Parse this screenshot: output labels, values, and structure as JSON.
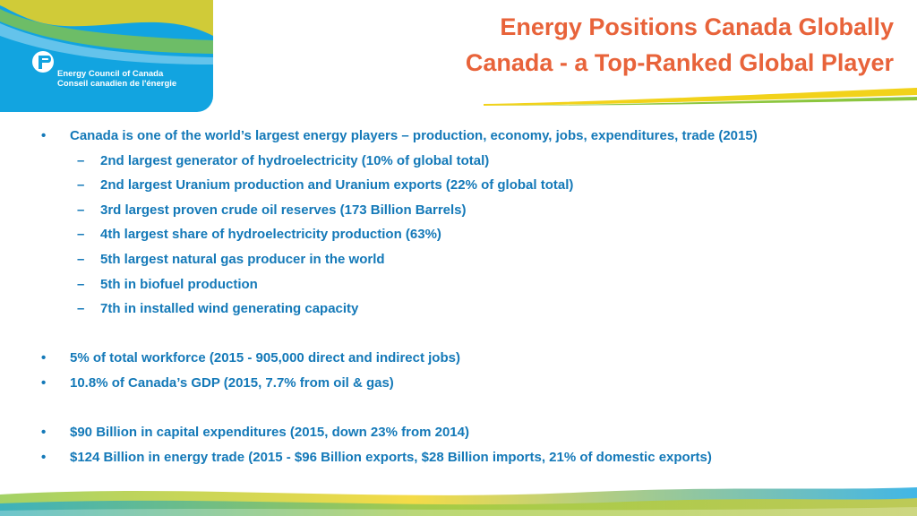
{
  "logo": {
    "line1": "Energy Council of Canada",
    "line2": "Conseil canadien de l'énergie"
  },
  "title": {
    "line1": "Energy Positions Canada Globally",
    "line2": "Canada - a Top-Ranked Global Player"
  },
  "colors": {
    "title": "#e8633a",
    "body_text": "#1479b8",
    "logo_panel": "#12a4e0",
    "accent_yellow": "#f2d21a",
    "accent_green": "#8cc63f"
  },
  "bullets": {
    "b1": "Canada is one of the world’s largest energy players – production, economy, jobs, expenditures, trade (2015)",
    "sub": [
      "2nd largest generator of hydroelectricity (10% of global total)",
      "2nd largest Uranium production and Uranium exports (22% of global total)",
      "3rd largest proven crude oil reserves (173 Billion Barrels)",
      "4th largest share of hydroelectricity production (63%)",
      "5th largest natural gas producer in the world",
      "5th in biofuel production",
      "7th in installed wind generating capacity"
    ],
    "b2": "5% of total workforce (2015 - 905,000 direct and indirect jobs)",
    "b3": "10.8% of Canada’s GDP (2015, 7.7% from oil & gas)",
    "b4": "$90 Billion in capital expenditures (2015, down 23% from 2014)",
    "b5": "$124 Billion in energy trade (2015 - $96 Billion exports, $28 Billion imports, 21% of domestic exports)",
    "bullet_char": "•",
    "dash_char": "–"
  }
}
